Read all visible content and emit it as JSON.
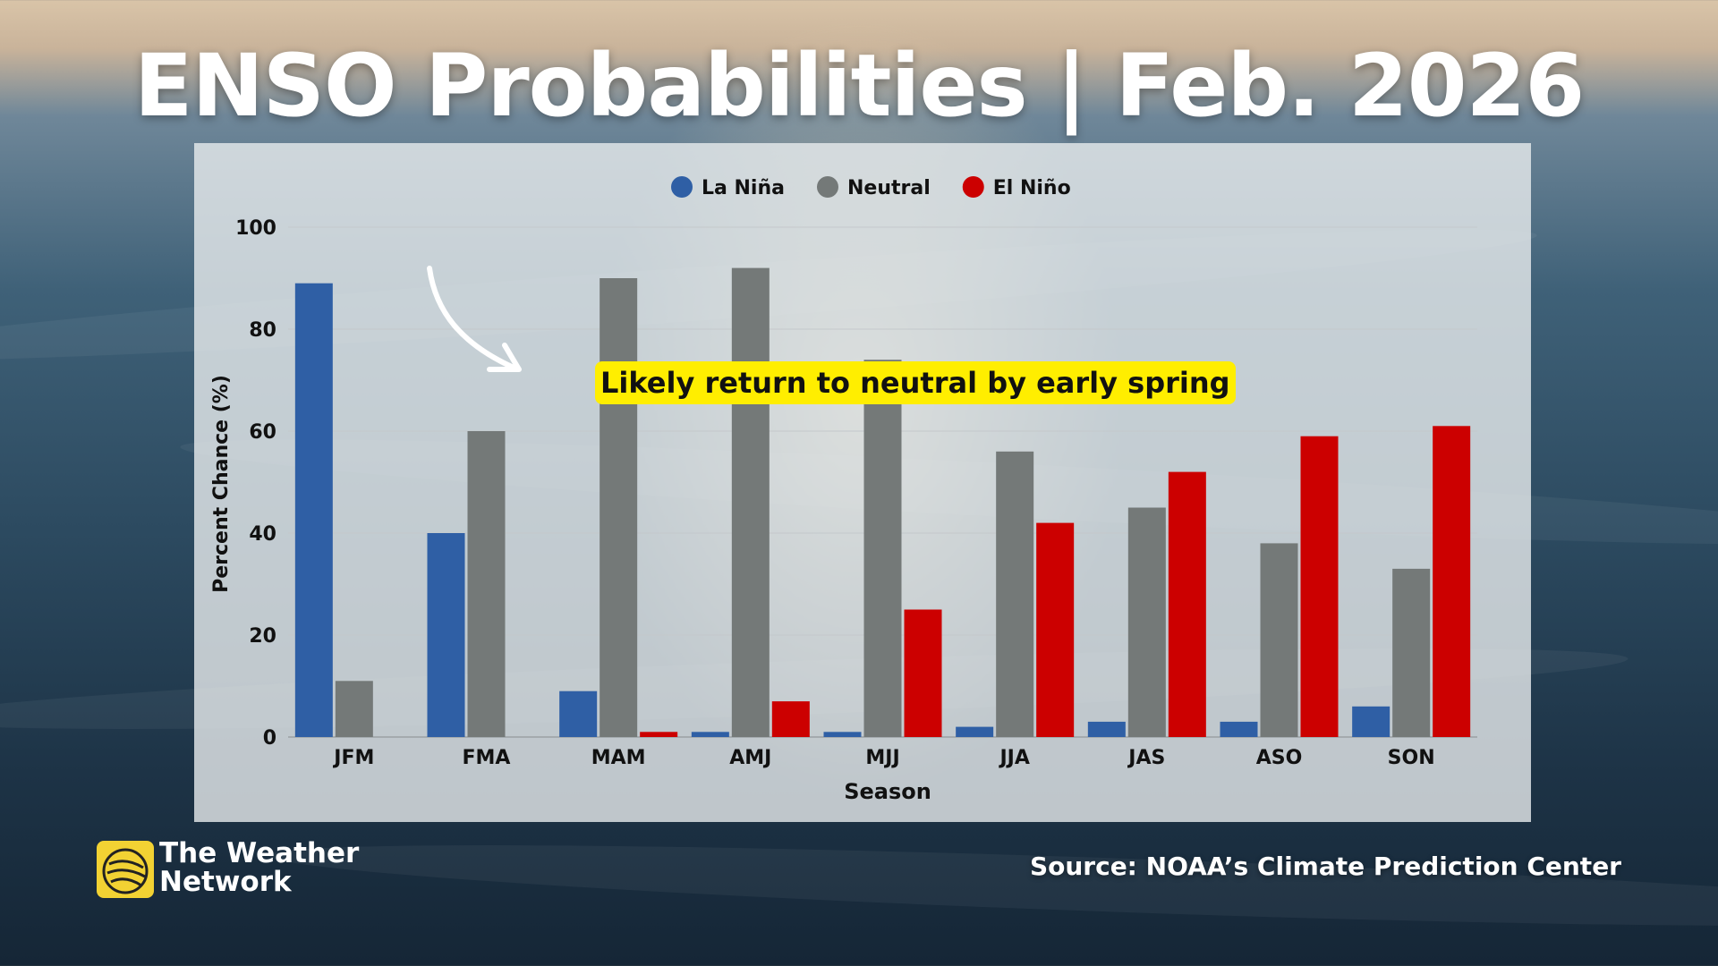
{
  "title": "ENSO Probabilities | Feb. 2026",
  "annotation": "Likely return to neutral by early spring",
  "branding": {
    "name": "The Weather Network"
  },
  "source": "Source: NOAA’s Climate Prediction Center",
  "chart_data": {
    "type": "bar",
    "categories": [
      "JFM",
      "FMA",
      "MAM",
      "AMJ",
      "MJJ",
      "JJA",
      "JAS",
      "ASO",
      "SON"
    ],
    "series": [
      {
        "name": "La Niña",
        "color": "#2f5fa5",
        "values": [
          89,
          40,
          9,
          1,
          1,
          2,
          3,
          3,
          6
        ]
      },
      {
        "name": "Neutral",
        "color": "#747978",
        "values": [
          11,
          60,
          90,
          92,
          74,
          56,
          45,
          38,
          33
        ]
      },
      {
        "name": "El Niño",
        "color": "#cc0000",
        "values": [
          0,
          0,
          1,
          7,
          25,
          42,
          52,
          59,
          61
        ]
      }
    ],
    "xlabel": "Season",
    "ylabel": "Percent Chance (%)",
    "ylim": [
      0,
      100
    ],
    "yticks": [
      0,
      20,
      40,
      60,
      80,
      100
    ],
    "grid": true,
    "legend_position": "top-center"
  }
}
